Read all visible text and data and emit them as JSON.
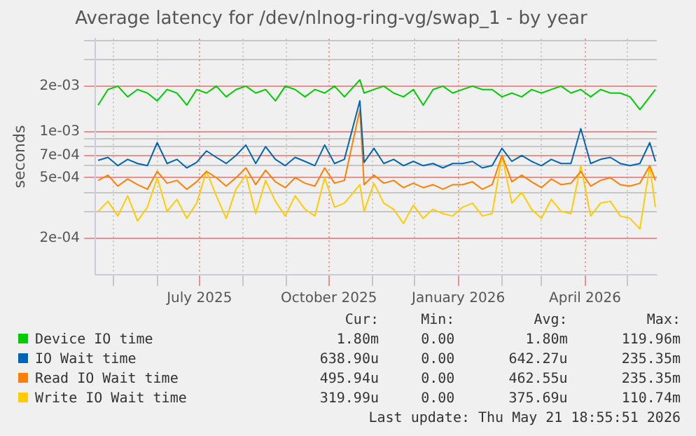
{
  "chart_data": {
    "type": "line",
    "title": "Average latency for /dev/nlnog-ring-vg/swap_1 - by year",
    "ylabel": "seconds",
    "x": [
      "2025-04-20",
      "2025-04-27",
      "2025-05-04",
      "2025-05-11",
      "2025-05-18",
      "2025-05-25",
      "2025-06-01",
      "2025-06-08",
      "2025-06-15",
      "2025-06-22",
      "2025-06-29",
      "2025-07-06",
      "2025-07-13",
      "2025-07-20",
      "2025-07-27",
      "2025-08-03",
      "2025-08-10",
      "2025-08-17",
      "2025-08-24",
      "2025-08-31",
      "2025-09-07",
      "2025-09-14",
      "2025-09-21",
      "2025-09-28",
      "2025-10-05",
      "2025-10-12",
      "2025-10-23",
      "2025-10-26",
      "2025-11-02",
      "2025-11-09",
      "2025-11-16",
      "2025-11-23",
      "2025-11-30",
      "2025-12-07",
      "2025-12-14",
      "2025-12-21",
      "2025-12-28",
      "2026-01-04",
      "2026-01-11",
      "2026-01-18",
      "2026-01-25",
      "2026-02-01",
      "2026-02-08",
      "2026-02-15",
      "2026-02-22",
      "2026-03-01",
      "2026-03-08",
      "2026-03-15",
      "2026-03-22",
      "2026-03-29",
      "2026-04-05",
      "2026-04-12",
      "2026-04-19",
      "2026-04-26",
      "2026-05-03",
      "2026-05-10",
      "2026-05-17",
      "2026-05-21"
    ],
    "series": [
      {
        "name": "Device IO time",
        "color": "#00cc00",
        "values": [
          0.0015,
          0.0019,
          0.002,
          0.0017,
          0.0019,
          0.0018,
          0.0016,
          0.0019,
          0.0018,
          0.0015,
          0.0019,
          0.0018,
          0.002,
          0.0017,
          0.0019,
          0.002,
          0.0018,
          0.0019,
          0.0016,
          0.002,
          0.0019,
          0.0017,
          0.0019,
          0.0018,
          0.002,
          0.0017,
          0.0022,
          0.0018,
          0.0019,
          0.002,
          0.0018,
          0.0017,
          0.0019,
          0.0015,
          0.0019,
          0.002,
          0.0018,
          0.0019,
          0.002,
          0.0019,
          0.0019,
          0.0017,
          0.0018,
          0.0017,
          0.0019,
          0.0018,
          0.0019,
          0.002,
          0.0018,
          0.0019,
          0.0017,
          0.0019,
          0.0018,
          0.0018,
          0.0017,
          0.0014,
          0.0017,
          0.0019
        ]
      },
      {
        "name": "IO Wait time",
        "color": "#0066b3",
        "values": [
          0.00065,
          0.00068,
          0.0006,
          0.00066,
          0.00062,
          0.0006,
          0.00085,
          0.00062,
          0.00066,
          0.00058,
          0.00063,
          0.00075,
          0.00068,
          0.00062,
          0.0007,
          0.00082,
          0.00062,
          0.0008,
          0.00066,
          0.0006,
          0.00068,
          0.00064,
          0.0006,
          0.00082,
          0.00062,
          0.00066,
          0.0016,
          0.00063,
          0.00078,
          0.00062,
          0.00066,
          0.0006,
          0.00064,
          0.0006,
          0.00062,
          0.00058,
          0.00062,
          0.00062,
          0.00064,
          0.00058,
          0.0006,
          0.00078,
          0.00064,
          0.0007,
          0.00064,
          0.0006,
          0.00066,
          0.00062,
          0.00062,
          0.00105,
          0.00062,
          0.00066,
          0.00068,
          0.00062,
          0.0006,
          0.00062,
          0.00085,
          0.00064
        ]
      },
      {
        "name": "Read IO Wait time",
        "color": "#ff8000",
        "values": [
          0.00048,
          0.00052,
          0.00044,
          0.00049,
          0.00045,
          0.00042,
          0.00055,
          0.00046,
          0.00048,
          0.00042,
          0.00047,
          0.00055,
          0.0005,
          0.00044,
          0.0005,
          0.00058,
          0.00045,
          0.00056,
          0.00047,
          0.00043,
          0.0005,
          0.00046,
          0.00044,
          0.00058,
          0.00046,
          0.00048,
          0.0014,
          0.00045,
          0.00052,
          0.00046,
          0.00048,
          0.00043,
          0.00046,
          0.00043,
          0.00045,
          0.00042,
          0.00045,
          0.00045,
          0.00047,
          0.00042,
          0.00045,
          0.0007,
          0.00047,
          0.00052,
          0.00047,
          0.00043,
          0.00049,
          0.00045,
          0.00046,
          0.00055,
          0.00044,
          0.00048,
          0.0005,
          0.00045,
          0.00044,
          0.00046,
          0.0006,
          0.00048
        ]
      },
      {
        "name": "Write IO Wait time",
        "color": "#ffcc00",
        "values": [
          0.0003,
          0.00035,
          0.00028,
          0.00038,
          0.00026,
          0.00032,
          0.0005,
          0.0003,
          0.00036,
          0.00027,
          0.00034,
          0.00055,
          0.00038,
          0.00027,
          0.00042,
          0.00052,
          0.00029,
          0.00048,
          0.00035,
          0.00028,
          0.00038,
          0.00031,
          0.00028,
          0.0005,
          0.00032,
          0.00034,
          0.00045,
          0.0003,
          0.00046,
          0.00034,
          0.00031,
          0.00025,
          0.00033,
          0.00027,
          0.00031,
          0.00029,
          0.00028,
          0.00032,
          0.00034,
          0.00028,
          0.00029,
          0.0007,
          0.00034,
          0.0004,
          0.00031,
          0.00027,
          0.00036,
          0.0003,
          0.00029,
          0.0006,
          0.00028,
          0.00034,
          0.00035,
          0.00028,
          0.00027,
          0.00023,
          0.0006,
          0.00032
        ]
      }
    ],
    "xlim": [
      "2025-04-18",
      "2026-05-22"
    ],
    "xticks": [
      {
        "value": "2025-05-01",
        "label": null
      },
      {
        "value": "2025-06-01",
        "label": null
      },
      {
        "value": "2025-07-01",
        "label": "July 2025"
      },
      {
        "value": "2025-08-01",
        "label": null
      },
      {
        "value": "2025-09-01",
        "label": null
      },
      {
        "value": "2025-10-01",
        "label": "October 2025"
      },
      {
        "value": "2025-11-01",
        "label": null
      },
      {
        "value": "2025-12-01",
        "label": null
      },
      {
        "value": "2026-01-01",
        "label": "January 2026"
      },
      {
        "value": "2026-02-01",
        "label": null
      },
      {
        "value": "2026-03-01",
        "label": null
      },
      {
        "value": "2026-04-01",
        "label": "April 2026"
      },
      {
        "value": "2026-05-01",
        "label": null
      }
    ],
    "ylim": [
      0.000115,
      0.0041
    ],
    "yticks": [
      {
        "value": 0.0002,
        "label": "2e-04"
      },
      {
        "value": 0.0003,
        "label": null
      },
      {
        "value": 0.0004,
        "label": null
      },
      {
        "value": 0.0005,
        "label": "5e-04"
      },
      {
        "value": 0.0006,
        "label": null
      },
      {
        "value": 0.0007,
        "label": "7e-04"
      },
      {
        "value": 0.0008,
        "label": null
      },
      {
        "value": 0.0009,
        "label": null
      },
      {
        "value": 0.001,
        "label": "1e-03"
      },
      {
        "value": 0.002,
        "label": "2e-03"
      },
      {
        "value": 0.003,
        "label": null
      },
      {
        "value": 0.004,
        "label": null
      }
    ],
    "log": "y",
    "grid": true,
    "legend": "bottom",
    "marker": "none",
    "line_style": "solid",
    "annotations": [
      "Cur:",
      "Min:",
      "Avg:",
      "Max:",
      "1.80m",
      "0.00",
      "1.80m",
      "119.96m",
      "638.90u",
      "0.00",
      "642.27u",
      "235.35m",
      "495.94u",
      "0.00",
      "462.55u",
      "235.35m",
      "319.99u",
      "0.00",
      "375.69u",
      "110.74m",
      "Last update: Thu May 21 18:55:51 2026"
    ]
  }
}
